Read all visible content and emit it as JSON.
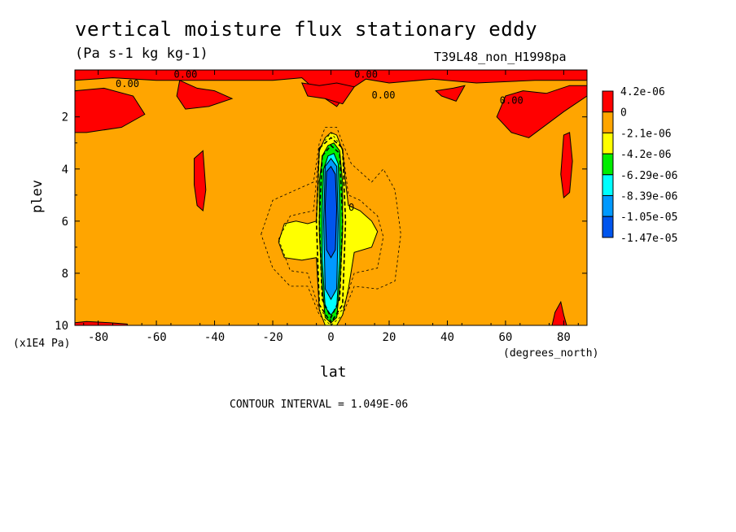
{
  "header": {
    "title": "vertical moisture flux stationary eddy",
    "units": "(Pa s-1 kg kg-1)",
    "run_label": "T39L48_non_H1998pa"
  },
  "footer": {
    "contour_interval": "CONTOUR INTERVAL = 1.049E-06"
  },
  "chart_data": {
    "type": "heatmap",
    "xlabel": "lat",
    "ylabel": "plev",
    "x_unit": "(degrees_north)",
    "y_unit": "(x1E4 Pa)",
    "xlim": [
      -88,
      88
    ],
    "ylim": [
      10,
      0.2
    ],
    "y_inverted": true,
    "x_ticks": [
      -80,
      -60,
      -40,
      -20,
      0,
      20,
      40,
      60,
      80
    ],
    "y_ticks": [
      2,
      4,
      6,
      8,
      10
    ],
    "x_tick_labels": [
      "-80",
      "-60",
      "-40",
      "-20",
      "0",
      "20",
      "40",
      "60",
      "80"
    ],
    "y_tick_labels": [
      "2",
      "4",
      "6",
      "8",
      "10"
    ],
    "background_color": "#ffa500",
    "legend": {
      "placement": "right",
      "levels": [
        {
          "label": "4.2e-06",
          "color": "#ff0000"
        },
        {
          "label": "0",
          "color": "#ffa500"
        },
        {
          "label": "-2.1e-06",
          "color": "#ffff00"
        },
        {
          "label": "-4.2e-06",
          "color": "#00ee00"
        },
        {
          "label": "-6.29e-06",
          "color": "#00ffff"
        },
        {
          "label": "-8.39e-06",
          "color": "#0099ff"
        },
        {
          "label": "-1.05e-05",
          "color": "#0055ee"
        },
        {
          "label": "-1.47e-05",
          "color": ""
        }
      ]
    },
    "contour_labels": [
      "0.00",
      "0.00",
      "0.00",
      "0.00",
      "0.00",
      "0"
    ],
    "regions": [
      {
        "color": "#ff0000",
        "points": [
          [
            -88,
            0.2
          ],
          [
            88,
            0.2
          ],
          [
            88,
            0.6
          ],
          [
            70,
            0.6
          ],
          [
            50,
            0.7
          ],
          [
            35,
            0.55
          ],
          [
            20,
            0.7
          ],
          [
            12,
            0.55
          ],
          [
            6,
            1.0
          ],
          [
            2,
            1.6
          ],
          [
            -2,
            1.3
          ],
          [
            -10,
            0.5
          ],
          [
            -20,
            0.6
          ],
          [
            -40,
            0.6
          ],
          [
            -60,
            0.6
          ],
          [
            -75,
            0.5
          ],
          [
            -88,
            0.6
          ]
        ]
      },
      {
        "color": "#ff0000",
        "points": [
          [
            -88,
            1.0
          ],
          [
            -78,
            0.9
          ],
          [
            -68,
            1.2
          ],
          [
            -64,
            1.9
          ],
          [
            -72,
            2.4
          ],
          [
            -84,
            2.6
          ],
          [
            -88,
            2.6
          ]
        ]
      },
      {
        "color": "#ff0000",
        "points": [
          [
            -52,
            0.6
          ],
          [
            -46,
            0.9
          ],
          [
            -40,
            1.0
          ],
          [
            -34,
            1.3
          ],
          [
            -42,
            1.6
          ],
          [
            -50,
            1.7
          ],
          [
            -53,
            1.2
          ]
        ]
      },
      {
        "color": "#ff0000",
        "points": [
          [
            -10,
            0.7
          ],
          [
            -4,
            0.8
          ],
          [
            2,
            0.7
          ],
          [
            8,
            0.85
          ],
          [
            4,
            1.5
          ],
          [
            -2,
            1.3
          ],
          [
            -8,
            1.2
          ]
        ]
      },
      {
        "color": "#ff0000",
        "points": [
          [
            36,
            1.0
          ],
          [
            42,
            0.9
          ],
          [
            46,
            0.8
          ],
          [
            43,
            1.4
          ],
          [
            38,
            1.2
          ]
        ]
      },
      {
        "color": "#ff0000",
        "points": [
          [
            60,
            1.2
          ],
          [
            66,
            1.0
          ],
          [
            74,
            1.1
          ],
          [
            82,
            0.8
          ],
          [
            88,
            0.8
          ],
          [
            88,
            1.2
          ],
          [
            80,
            1.8
          ],
          [
            74,
            2.3
          ],
          [
            68,
            2.8
          ],
          [
            62,
            2.6
          ],
          [
            57,
            2.0
          ]
        ]
      },
      {
        "color": "#ff0000",
        "points": [
          [
            -47,
            3.6
          ],
          [
            -44,
            3.3
          ],
          [
            -43,
            4.8
          ],
          [
            -44,
            5.6
          ],
          [
            -46,
            5.4
          ],
          [
            -47,
            4.6
          ]
        ]
      },
      {
        "color": "#ff0000",
        "points": [
          [
            80,
            2.7
          ],
          [
            82,
            2.6
          ],
          [
            83,
            3.7
          ],
          [
            82,
            4.9
          ],
          [
            80,
            5.1
          ],
          [
            79,
            4.2
          ]
        ]
      },
      {
        "color": "#ff0000",
        "points": [
          [
            -88,
            9.9
          ],
          [
            -84,
            9.85
          ],
          [
            -76,
            9.9
          ],
          [
            -70,
            9.95
          ],
          [
            -70,
            10
          ],
          [
            -88,
            10
          ]
        ]
      },
      {
        "color": "#ff0000",
        "points": [
          [
            76,
            10
          ],
          [
            77,
            9.5
          ],
          [
            79,
            9.1
          ],
          [
            80,
            9.6
          ],
          [
            81,
            10
          ]
        ]
      },
      {
        "color": "#ffff00",
        "points": [
          [
            -16,
            6.1
          ],
          [
            -12,
            6.0
          ],
          [
            -8,
            6.1
          ],
          [
            -5,
            6.0
          ],
          [
            -4,
            3.3
          ],
          [
            -2,
            2.8
          ],
          [
            0,
            2.6
          ],
          [
            2,
            2.7
          ],
          [
            4,
            3.3
          ],
          [
            5,
            4.5
          ],
          [
            6,
            5.4
          ],
          [
            10,
            5.6
          ],
          [
            14,
            6.0
          ],
          [
            16,
            6.4
          ],
          [
            14,
            7.0
          ],
          [
            8,
            7.2
          ],
          [
            6,
            8.6
          ],
          [
            4,
            9.6
          ],
          [
            2,
            10
          ],
          [
            -2,
            10
          ],
          [
            -4,
            9.4
          ],
          [
            -5,
            7.4
          ],
          [
            -10,
            7.5
          ],
          [
            -16,
            7.4
          ],
          [
            -18,
            6.8
          ]
        ]
      },
      {
        "color": "#00ee00",
        "points": [
          [
            -3,
            3.5
          ],
          [
            -1,
            3.1
          ],
          [
            1,
            3.0
          ],
          [
            3,
            3.3
          ],
          [
            4,
            4.5
          ],
          [
            4,
            6.5
          ],
          [
            3,
            8.5
          ],
          [
            2,
            9.7
          ],
          [
            0,
            9.9
          ],
          [
            -2,
            9.7
          ],
          [
            -3,
            8.5
          ],
          [
            -4,
            6.5
          ],
          [
            -4,
            4.5
          ]
        ]
      },
      {
        "color": "#00ffff",
        "points": [
          [
            -2.5,
            4.0
          ],
          [
            -1,
            3.5
          ],
          [
            1,
            3.4
          ],
          [
            2.5,
            3.8
          ],
          [
            3,
            5.5
          ],
          [
            3,
            7.5
          ],
          [
            2,
            9.3
          ],
          [
            0,
            9.6
          ],
          [
            -2,
            9.3
          ],
          [
            -3,
            7.5
          ],
          [
            -3,
            5.5
          ]
        ]
      },
      {
        "color": "#0099ff",
        "points": [
          [
            -2,
            3.9
          ],
          [
            0,
            3.6
          ],
          [
            2,
            3.9
          ],
          [
            2.5,
            6.0
          ],
          [
            2,
            8.6
          ],
          [
            0,
            9.0
          ],
          [
            -2,
            8.6
          ],
          [
            -2.5,
            6.0
          ]
        ]
      },
      {
        "color": "#0055ee",
        "points": [
          [
            -1.5,
            4.1
          ],
          [
            0,
            3.9
          ],
          [
            1.5,
            4.2
          ],
          [
            2,
            5.5
          ],
          [
            1.5,
            7.1
          ],
          [
            0,
            7.4
          ],
          [
            -1.5,
            7.1
          ],
          [
            -2,
            5.5
          ]
        ]
      }
    ],
    "dashed_contours": [
      [
        [
          -24,
          6.5
        ],
        [
          -20,
          5.2
        ],
        [
          -12,
          4.8
        ],
        [
          -6,
          4.5
        ],
        [
          -4,
          3.0
        ],
        [
          -2,
          2.4
        ],
        [
          2,
          2.4
        ],
        [
          4,
          3.0
        ],
        [
          7,
          3.8
        ],
        [
          14,
          4.5
        ],
        [
          18,
          4.0
        ],
        [
          22,
          4.8
        ],
        [
          24,
          6.5
        ],
        [
          22,
          8.3
        ],
        [
          16,
          8.6
        ],
        [
          8,
          8.5
        ],
        [
          4,
          9.6
        ],
        [
          0,
          10
        ],
        [
          -4,
          9.6
        ],
        [
          -8,
          8.5
        ],
        [
          -14,
          8.5
        ],
        [
          -20,
          7.8
        ]
      ],
      [
        [
          -18,
          6.7
        ],
        [
          -14,
          5.8
        ],
        [
          -6,
          5.6
        ],
        [
          -4,
          3.2
        ],
        [
          0,
          2.6
        ],
        [
          4,
          3.2
        ],
        [
          6,
          5.0
        ],
        [
          10,
          5.2
        ],
        [
          16,
          5.8
        ],
        [
          18,
          6.6
        ],
        [
          16,
          7.8
        ],
        [
          8,
          8.0
        ],
        [
          4,
          9.4
        ],
        [
          0,
          9.8
        ],
        [
          -4,
          9.4
        ],
        [
          -8,
          8.0
        ],
        [
          -14,
          7.9
        ]
      ],
      [
        [
          -4,
          3.2
        ],
        [
          0,
          2.8
        ],
        [
          4,
          3.2
        ],
        [
          5,
          6
        ],
        [
          4,
          9.2
        ],
        [
          0,
          9.9
        ],
        [
          -4,
          9.2
        ],
        [
          -5,
          6
        ]
      ],
      [
        [
          -3,
          3.5
        ],
        [
          0,
          3.1
        ],
        [
          3,
          3.4
        ],
        [
          4,
          6
        ],
        [
          3,
          9.0
        ],
        [
          0,
          9.7
        ],
        [
          -3,
          9.0
        ],
        [
          -4,
          6
        ]
      ]
    ],
    "contour_label_positions": [
      [
        -74,
        0.85
      ],
      [
        -54,
        0.5
      ],
      [
        8,
        0.5
      ],
      [
        14,
        1.3
      ],
      [
        58,
        1.5
      ],
      [
        6,
        5.6
      ]
    ]
  }
}
